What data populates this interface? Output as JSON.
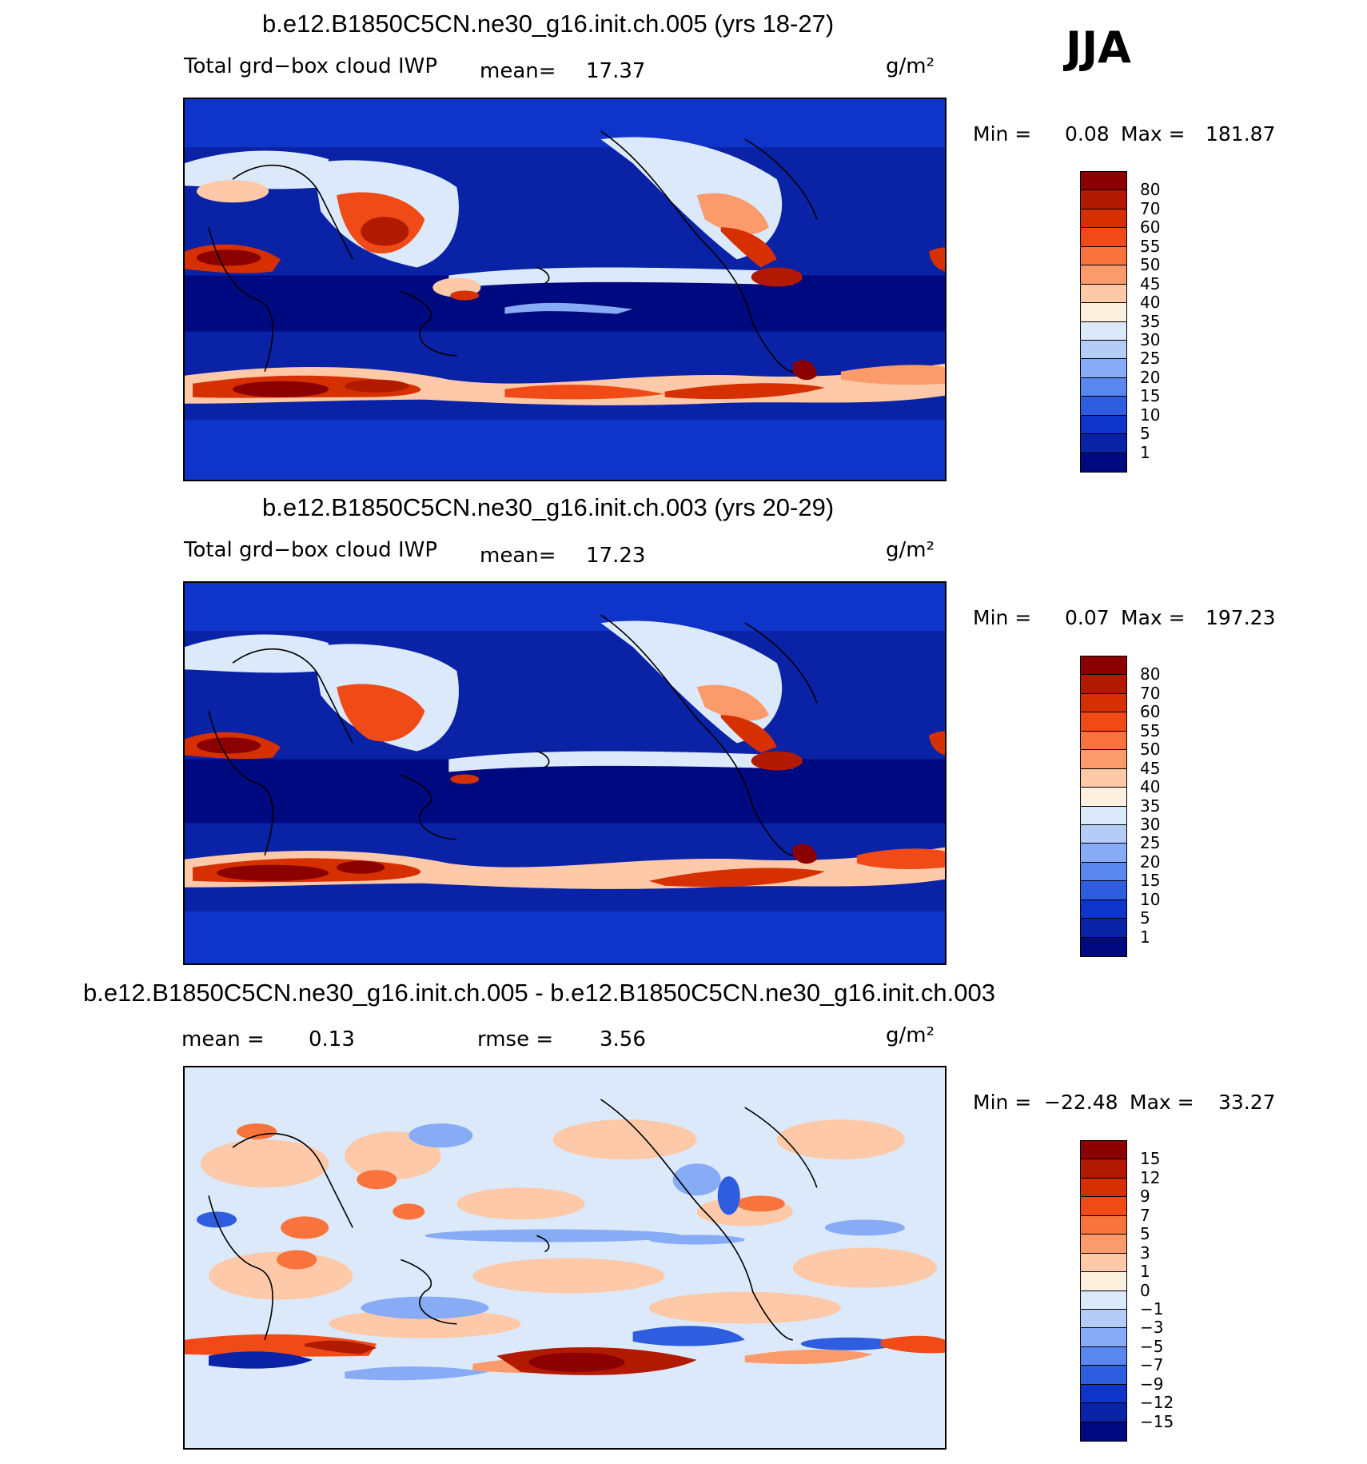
{
  "season_label": "JJA",
  "panels": [
    {
      "id": "case-a",
      "title": "b.e12.B1850C5CN.ne30_g16.init.ch.005 (yrs 18-27)",
      "variable": "Total grd−box cloud IWP",
      "mean_label": "mean=",
      "mean_value": "17.37",
      "units": "g/m²",
      "min_label": "Min  =",
      "min_value": "0.08",
      "max_label": "Max  =",
      "max_value": "181.87",
      "colorbar": {
        "ticks": [
          "80",
          "70",
          "60",
          "55",
          "50",
          "45",
          "40",
          "35",
          "30",
          "25",
          "20",
          "15",
          "10",
          "5",
          "1"
        ],
        "colors": [
          "#8b0000",
          "#b21a00",
          "#d63000",
          "#f04a16",
          "#f8743c",
          "#fb9a6b",
          "#fdc9a8",
          "#fdf0df",
          "#dbe9fa",
          "#b3cdf7",
          "#87acf5",
          "#5a86ef",
          "#2f5de0",
          "#0f34c9",
          "#0a22a5",
          "#000a80"
        ]
      }
    },
    {
      "id": "case-b",
      "title": "b.e12.B1850C5CN.ne30_g16.init.ch.003 (yrs 20-29)",
      "variable": "Total grd−box cloud IWP",
      "mean_label": "mean=",
      "mean_value": "17.23",
      "units": "g/m²",
      "min_label": "Min  =",
      "min_value": "0.07",
      "max_label": "Max  =",
      "max_value": "197.23",
      "colorbar": {
        "ticks": [
          "80",
          "70",
          "60",
          "55",
          "50",
          "45",
          "40",
          "35",
          "30",
          "25",
          "20",
          "15",
          "10",
          "5",
          "1"
        ],
        "colors": [
          "#8b0000",
          "#b21a00",
          "#d63000",
          "#f04a16",
          "#f8743c",
          "#fb9a6b",
          "#fdc9a8",
          "#fdf0df",
          "#dbe9fa",
          "#b3cdf7",
          "#87acf5",
          "#5a86ef",
          "#2f5de0",
          "#0f34c9",
          "#0a22a5",
          "#000a80"
        ]
      }
    },
    {
      "id": "difference",
      "title": "b.e12.B1850C5CN.ne30_g16.init.ch.005 - b.e12.B1850C5CN.ne30_g16.init.ch.003",
      "mean_label": "mean =",
      "mean_value": "0.13",
      "rmse_label": "rmse =",
      "rmse_value": "3.56",
      "units": "g/m²",
      "min_label": "Min  =",
      "min_value": "−22.48",
      "max_label": "Max  =",
      "max_value": "33.27",
      "colorbar": {
        "ticks": [
          "15",
          "12",
          "9",
          "7",
          "5",
          "3",
          "1",
          "0",
          "−1",
          "−3",
          "−5",
          "−7",
          "−9",
          "−12",
          "−15"
        ],
        "colors": [
          "#8b0000",
          "#b21a00",
          "#d63000",
          "#f04a16",
          "#f8743c",
          "#fb9a6b",
          "#fdc9a8",
          "#fdf0df",
          "#dbe9fa",
          "#b3cdf7",
          "#87acf5",
          "#5a86ef",
          "#2f5de0",
          "#0f34c9",
          "#0a22a5",
          "#000a80"
        ]
      }
    }
  ]
}
